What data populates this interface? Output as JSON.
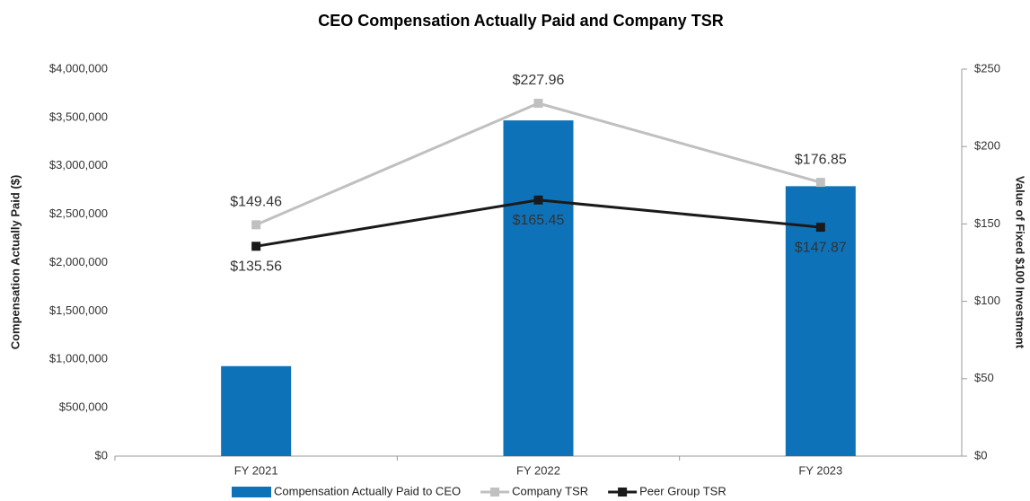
{
  "chart_data": {
    "type": "bar",
    "title": "CEO Compensation Actually Paid and Company TSR",
    "ylabel": "Compensation Actually Paid ($)",
    "y2label": "Value of Fixed $100 Investment",
    "categories": [
      "FY 2021",
      "FY 2022",
      "FY 2023"
    ],
    "series": [
      {
        "name": "Compensation Actually Paid to CEO",
        "type": "bar",
        "axis": "y",
        "color": "#0e72b9",
        "values": [
          930000,
          3470000,
          2790000
        ]
      },
      {
        "name": "Company TSR",
        "type": "line",
        "axis": "y2",
        "color": "#c0c0c0",
        "values": [
          149.46,
          227.96,
          176.85
        ],
        "value_labels": [
          "$149.46",
          "$227.96",
          "$176.85"
        ],
        "label_position": "above"
      },
      {
        "name": "Peer Group TSR",
        "type": "line",
        "axis": "y2",
        "color": "#1a1a1a",
        "values": [
          135.56,
          165.45,
          147.87
        ],
        "value_labels": [
          "$135.56",
          "$165.45",
          "$147.87"
        ],
        "label_position": "below"
      }
    ],
    "ylim": [
      0,
      4000000
    ],
    "yticks": [
      {
        "value": 0,
        "label": "$0"
      },
      {
        "value": 500000,
        "label": "$500,000"
      },
      {
        "value": 1000000,
        "label": "$1,000,000"
      },
      {
        "value": 1500000,
        "label": "$1,500,000"
      },
      {
        "value": 2000000,
        "label": "$2,000,000"
      },
      {
        "value": 2500000,
        "label": "$2,500,000"
      },
      {
        "value": 3000000,
        "label": "$3,000,000"
      },
      {
        "value": 3500000,
        "label": "$3,500,000"
      },
      {
        "value": 4000000,
        "label": "$4,000,000"
      }
    ],
    "y2lim": [
      0,
      250
    ],
    "y2ticks": [
      {
        "value": 0,
        "label": "$0"
      },
      {
        "value": 50,
        "label": "$50"
      },
      {
        "value": 100,
        "label": "$100"
      },
      {
        "value": 150,
        "label": "$150"
      },
      {
        "value": 200,
        "label": "$200"
      },
      {
        "value": 250,
        "label": "$250"
      }
    ],
    "legend": "bottom"
  }
}
